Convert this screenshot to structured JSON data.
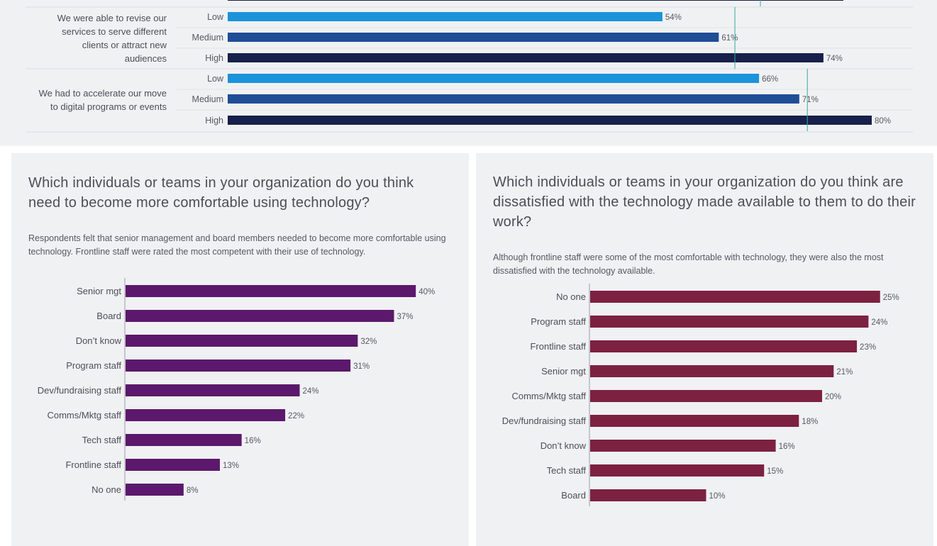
{
  "top": {
    "colors": {
      "low": "#1b93d8",
      "medium": "#1f4e96",
      "high": "#17204a",
      "reference": "#3aa6a0"
    },
    "groups": [
      {
        "question_lines": [
          "We were able to revise our",
          "services to serve different",
          "clients or attract new",
          "audiences"
        ],
        "levels": [
          {
            "level": "Low",
            "value": 54,
            "label": "54%"
          },
          {
            "level": "Medium",
            "value": 61,
            "label": "61%"
          },
          {
            "level": "High",
            "value": 74,
            "label": "74%"
          }
        ],
        "reference_value": 63
      },
      {
        "question_lines": [
          "We had to accelerate our move",
          "to digital programs or events"
        ],
        "levels": [
          {
            "level": "Low",
            "value": 66,
            "label": "66%"
          },
          {
            "level": "Medium",
            "value": 71,
            "label": "71%"
          },
          {
            "level": "High",
            "value": 80,
            "label": "80%"
          }
        ],
        "reference_value": 72
      }
    ]
  },
  "left_chart": {
    "title": "Which individuals or teams in your organization do you think need to become more comfortable using technology?",
    "description": "Respondents felt that senior management and board members needed to become more comfortable using technology. Frontline staff were rated the most competent with their use of technology.",
    "bar_color": "#5c186c"
  },
  "right_chart": {
    "title": "Which individuals or teams in your organization do you think are dissatisfied with the technology made available to them to do their work?",
    "description": "Although frontline staff were some of the most comfortable with technology, they were also the most dissatisfied with the technology available.",
    "bar_color": "#7d2140"
  },
  "chart_data": [
    {
      "type": "bar",
      "orientation": "horizontal",
      "categories": [
        "We were able to revise our services to serve different clients or attract new audiences",
        "We had to accelerate our move to digital programs or events"
      ],
      "series": [
        {
          "name": "Low",
          "values": [
            54,
            66
          ]
        },
        {
          "name": "Medium",
          "values": [
            61,
            71
          ]
        },
        {
          "name": "High",
          "values": [
            74,
            80
          ]
        }
      ],
      "unit": "%"
    },
    {
      "type": "bar",
      "orientation": "horizontal",
      "title": "Which individuals or teams in your organization do you think need to become more comfortable using technology?",
      "categories": [
        "Senior mgt",
        "Board",
        "Don’t know",
        "Program staff",
        "Dev/fundraising staff",
        "Comms/Mktg staff",
        "Tech staff",
        "Frontline staff",
        "No one"
      ],
      "values": [
        40,
        37,
        32,
        31,
        24,
        22,
        16,
        13,
        8
      ],
      "value_labels": [
        "40%",
        "37%",
        "32%",
        "31%",
        "24%",
        "22%",
        "16%",
        "13%",
        "8%"
      ],
      "unit": "%"
    },
    {
      "type": "bar",
      "orientation": "horizontal",
      "title": "Which individuals or teams in your organization do you think are dissatisfied with the technology made available to them to do their work?",
      "categories": [
        "No one",
        "Program staff",
        "Frontline staff",
        "Senior mgt",
        "Comms/Mktg staff",
        "Dev/fundraising staff",
        "Don’t know",
        "Tech staff",
        "Board"
      ],
      "values": [
        25,
        24,
        23,
        21,
        20,
        18,
        16,
        15,
        10
      ],
      "value_labels": [
        "25%",
        "24%",
        "23%",
        "21%",
        "20%",
        "18%",
        "16%",
        "15%",
        "10%"
      ],
      "unit": "%"
    }
  ]
}
